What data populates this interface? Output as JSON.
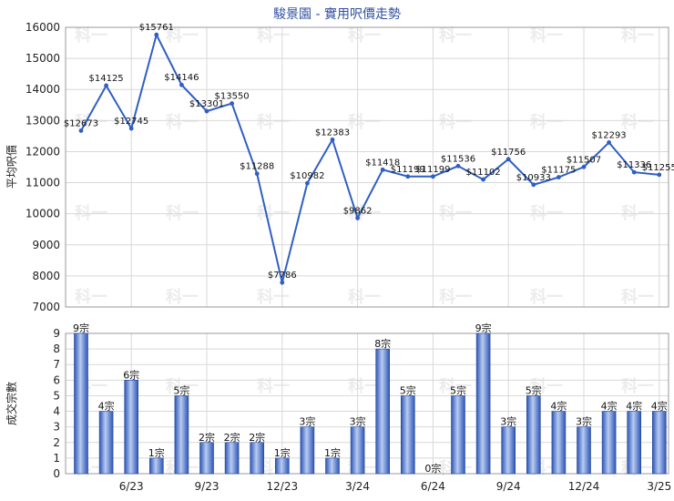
{
  "chart_data": [
    {
      "type": "line",
      "title": "駿景園 - 實用呎價走勢",
      "ylabel": "平均呎價",
      "ylim": [
        7000,
        16000
      ],
      "yticks": [
        7000,
        8000,
        9000,
        10000,
        11000,
        12000,
        13000,
        14000,
        15000,
        16000
      ],
      "grid": true,
      "points": [
        {
          "i": 0,
          "value": 12673,
          "label": "$12673"
        },
        {
          "i": 1,
          "value": 14125,
          "label": "$14125"
        },
        {
          "i": 2,
          "value": 12745,
          "label": "$12745"
        },
        {
          "i": 3,
          "value": 15761,
          "label": "$15761"
        },
        {
          "i": 4,
          "value": 14146,
          "label": "$14146"
        },
        {
          "i": 5,
          "value": 13301,
          "label": "$13301"
        },
        {
          "i": 6,
          "value": 13550,
          "label": "$13550"
        },
        {
          "i": 7,
          "value": 11288,
          "label": "$11288"
        },
        {
          "i": 8,
          "value": 7786,
          "label": "$7786"
        },
        {
          "i": 9,
          "value": 10982,
          "label": "$10982"
        },
        {
          "i": 10,
          "value": 12383,
          "label": "$12383"
        },
        {
          "i": 11,
          "value": 9862,
          "label": "$9862"
        },
        {
          "i": 12,
          "value": 11418,
          "label": "$11418"
        },
        {
          "i": 13,
          "value": 11199,
          "label": "$11199"
        },
        {
          "i": 14,
          "value": 11199,
          "label": "$11199"
        },
        {
          "i": 15,
          "value": 11536,
          "label": "$11536"
        },
        {
          "i": 16,
          "value": 11102,
          "label": "$11102"
        },
        {
          "i": 17,
          "value": 11756,
          "label": "$11756"
        },
        {
          "i": 18,
          "value": 10933,
          "label": "$10933"
        },
        {
          "i": 19,
          "value": 11175,
          "label": "$11175"
        },
        {
          "i": 20,
          "value": 11507,
          "label": "$11507"
        },
        {
          "i": 21,
          "value": 12293,
          "label": "$12293"
        },
        {
          "i": 22,
          "value": 11336,
          "label": "$11336"
        },
        {
          "i": 23,
          "value": 11255,
          "label": "$11255"
        }
      ]
    },
    {
      "type": "bar",
      "ylabel": "成交宗數",
      "ylim": [
        0,
        9
      ],
      "yticks": [
        0,
        1,
        2,
        3,
        4,
        5,
        6,
        7,
        8,
        9
      ],
      "grid": true,
      "values": [
        9,
        4,
        6,
        1,
        5,
        2,
        2,
        2,
        1,
        3,
        1,
        3,
        8,
        5,
        0,
        5,
        9,
        3,
        5,
        4,
        3,
        4,
        4,
        4
      ],
      "labels": [
        "9宗",
        "4宗",
        "6宗",
        "1宗",
        "5宗",
        "2宗",
        "2宗",
        "2宗",
        "1宗",
        "3宗",
        "1宗",
        "3宗",
        "8宗",
        "5宗",
        "0宗",
        "5宗",
        "9宗",
        "3宗",
        "5宗",
        "4宗",
        "3宗",
        "4宗",
        "4宗",
        "4宗"
      ],
      "x_ticks": [
        {
          "i": 2,
          "label": "6/23"
        },
        {
          "i": 5,
          "label": "9/23"
        },
        {
          "i": 8,
          "label": "12/23"
        },
        {
          "i": 11,
          "label": "3/24"
        },
        {
          "i": 14,
          "label": "6/24"
        },
        {
          "i": 17,
          "label": "9/24"
        },
        {
          "i": 20,
          "label": "12/24"
        },
        {
          "i": 23,
          "label": "3/25"
        }
      ]
    }
  ],
  "colors": {
    "line": "#2f5fc4",
    "bar_dark": "#2d55b5",
    "bar_light": "#a9c0ef",
    "grid": "#d8d8d8",
    "title": "#2f4f9f",
    "watermark": "#ececec"
  },
  "watermark_text": "科一"
}
